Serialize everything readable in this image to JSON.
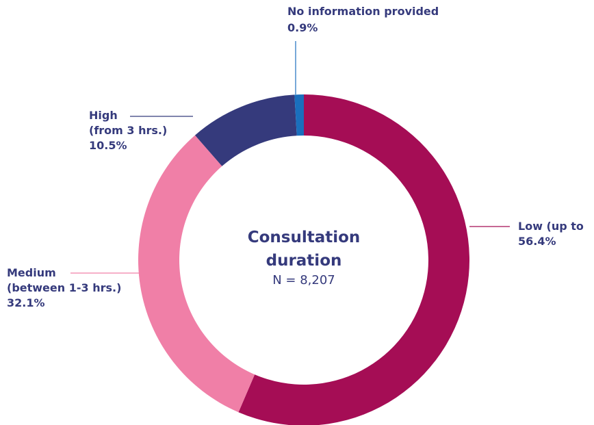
{
  "chart_data": {
    "type": "donut",
    "title": "Consultation\nduration",
    "subtitle": "N = 8,207",
    "categories": [
      "Low (up to",
      "Medium\n(between 1-3 hrs.)",
      "High\n(from 3 hrs.)",
      "No information provided"
    ],
    "values": [
      56.4,
      32.1,
      10.5,
      0.9
    ],
    "value_labels": [
      "56.4%",
      "32.1%",
      "10.5%",
      "0.9%"
    ],
    "colors": [
      "#a50d55",
      "#f07fa7",
      "#353a7c",
      "#1a6fbd"
    ]
  }
}
